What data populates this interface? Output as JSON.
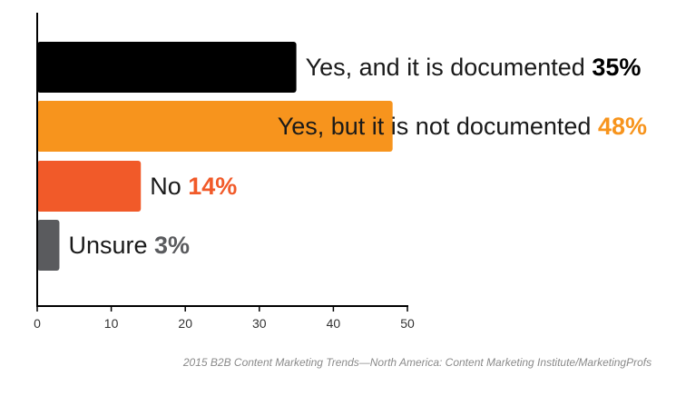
{
  "chart_data": {
    "type": "bar",
    "orientation": "horizontal",
    "categories": [
      "Yes, and it is documented",
      "Yes, but it is not documented",
      "No",
      "Unsure"
    ],
    "values": [
      35,
      48,
      14,
      3
    ],
    "value_labels": [
      "35%",
      "48%",
      "14%",
      "3%"
    ],
    "colors": [
      "#000000",
      "#f7941d",
      "#f15a29",
      "#5a5b5e"
    ],
    "xlim": [
      0,
      50
    ],
    "xticks": [
      "0",
      "10",
      "20",
      "30",
      "40",
      "50"
    ],
    "grid": false
  },
  "source": "2015 B2B Content Marketing Trends—North America: Content Marketing Institute/MarketingProfs"
}
